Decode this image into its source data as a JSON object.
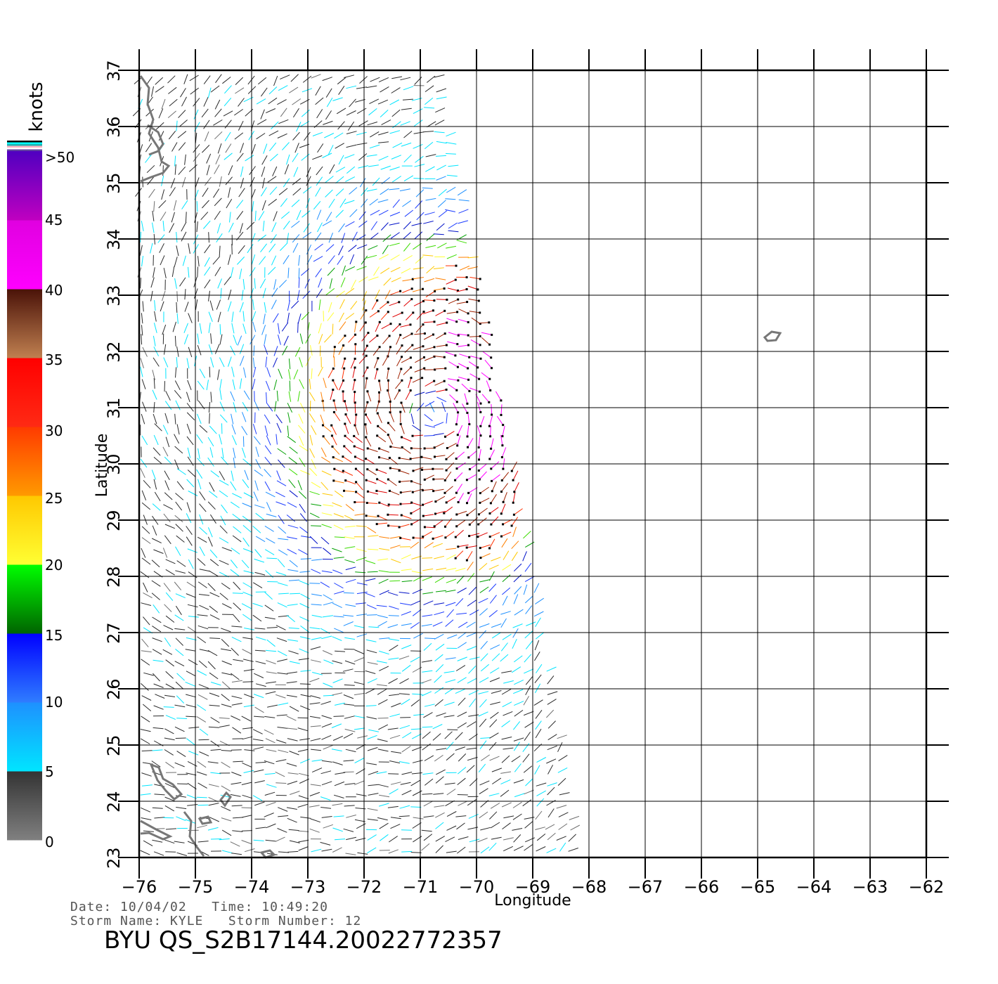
{
  "map": {
    "lon_range": [
      -76,
      -62
    ],
    "lat_range": [
      23,
      37
    ],
    "lon_ticks": [
      "-76",
      "-75",
      "-74",
      "-73",
      "-72",
      "-71",
      "-70",
      "-69",
      "-68",
      "-67",
      "-66",
      "-65",
      "-64",
      "-63",
      "-62"
    ],
    "lat_ticks": [
      "23",
      "24",
      "25",
      "26",
      "27",
      "28",
      "29",
      "30",
      "31",
      "32",
      "33",
      "34",
      "35",
      "36",
      "37"
    ],
    "xlabel": "Longitude",
    "ylabel": "Latitude",
    "gridlines": true,
    "swath_corners_lonlat": [
      [
        -76,
        37
      ],
      [
        -70.5,
        37
      ],
      [
        -68.2,
        23
      ],
      [
        -76,
        23
      ]
    ],
    "storm_center_lonlat": [
      -70.8,
      30.9
    ]
  },
  "legend": {
    "title": "knots",
    "labels": [
      ">50",
      "45",
      "40",
      "35",
      "30",
      "25",
      "20",
      "15",
      "10",
      "5",
      "0"
    ],
    "bands": [
      {
        "from": 0,
        "to": 5,
        "top": "#333333",
        "bottom": "#808080"
      },
      {
        "from": 5,
        "to": 10,
        "top": "#1e90ff",
        "bottom": "#00e5ff"
      },
      {
        "from": 10,
        "to": 15,
        "top": "#0000ff",
        "bottom": "#2f7dff"
      },
      {
        "from": 15,
        "to": 20,
        "top": "#00ff00",
        "bottom": "#006400"
      },
      {
        "from": 20,
        "to": 25,
        "top": "#ffc800",
        "bottom": "#ffff33"
      },
      {
        "from": 25,
        "to": 30,
        "top": "#ff3a00",
        "bottom": "#ff9a00"
      },
      {
        "from": 30,
        "to": 35,
        "top": "#ff0000",
        "bottom": "#ff2a14"
      },
      {
        "from": 35,
        "to": 40,
        "top": "#4a1208",
        "bottom": "#c08050"
      },
      {
        "from": 40,
        "to": 45,
        "top": "#e000e0",
        "bottom": "#ff00ff"
      },
      {
        "from": 45,
        "to": 50,
        "top": "#5000c0",
        "bottom": "#c000c0"
      }
    ]
  },
  "info": {
    "line1": "Date: 10/04/02   Time: 10:49:20",
    "line2": "Storm Name: KYLE   Storm Number: 12",
    "title": "BYU QS_S2B17144.20022772357"
  }
}
